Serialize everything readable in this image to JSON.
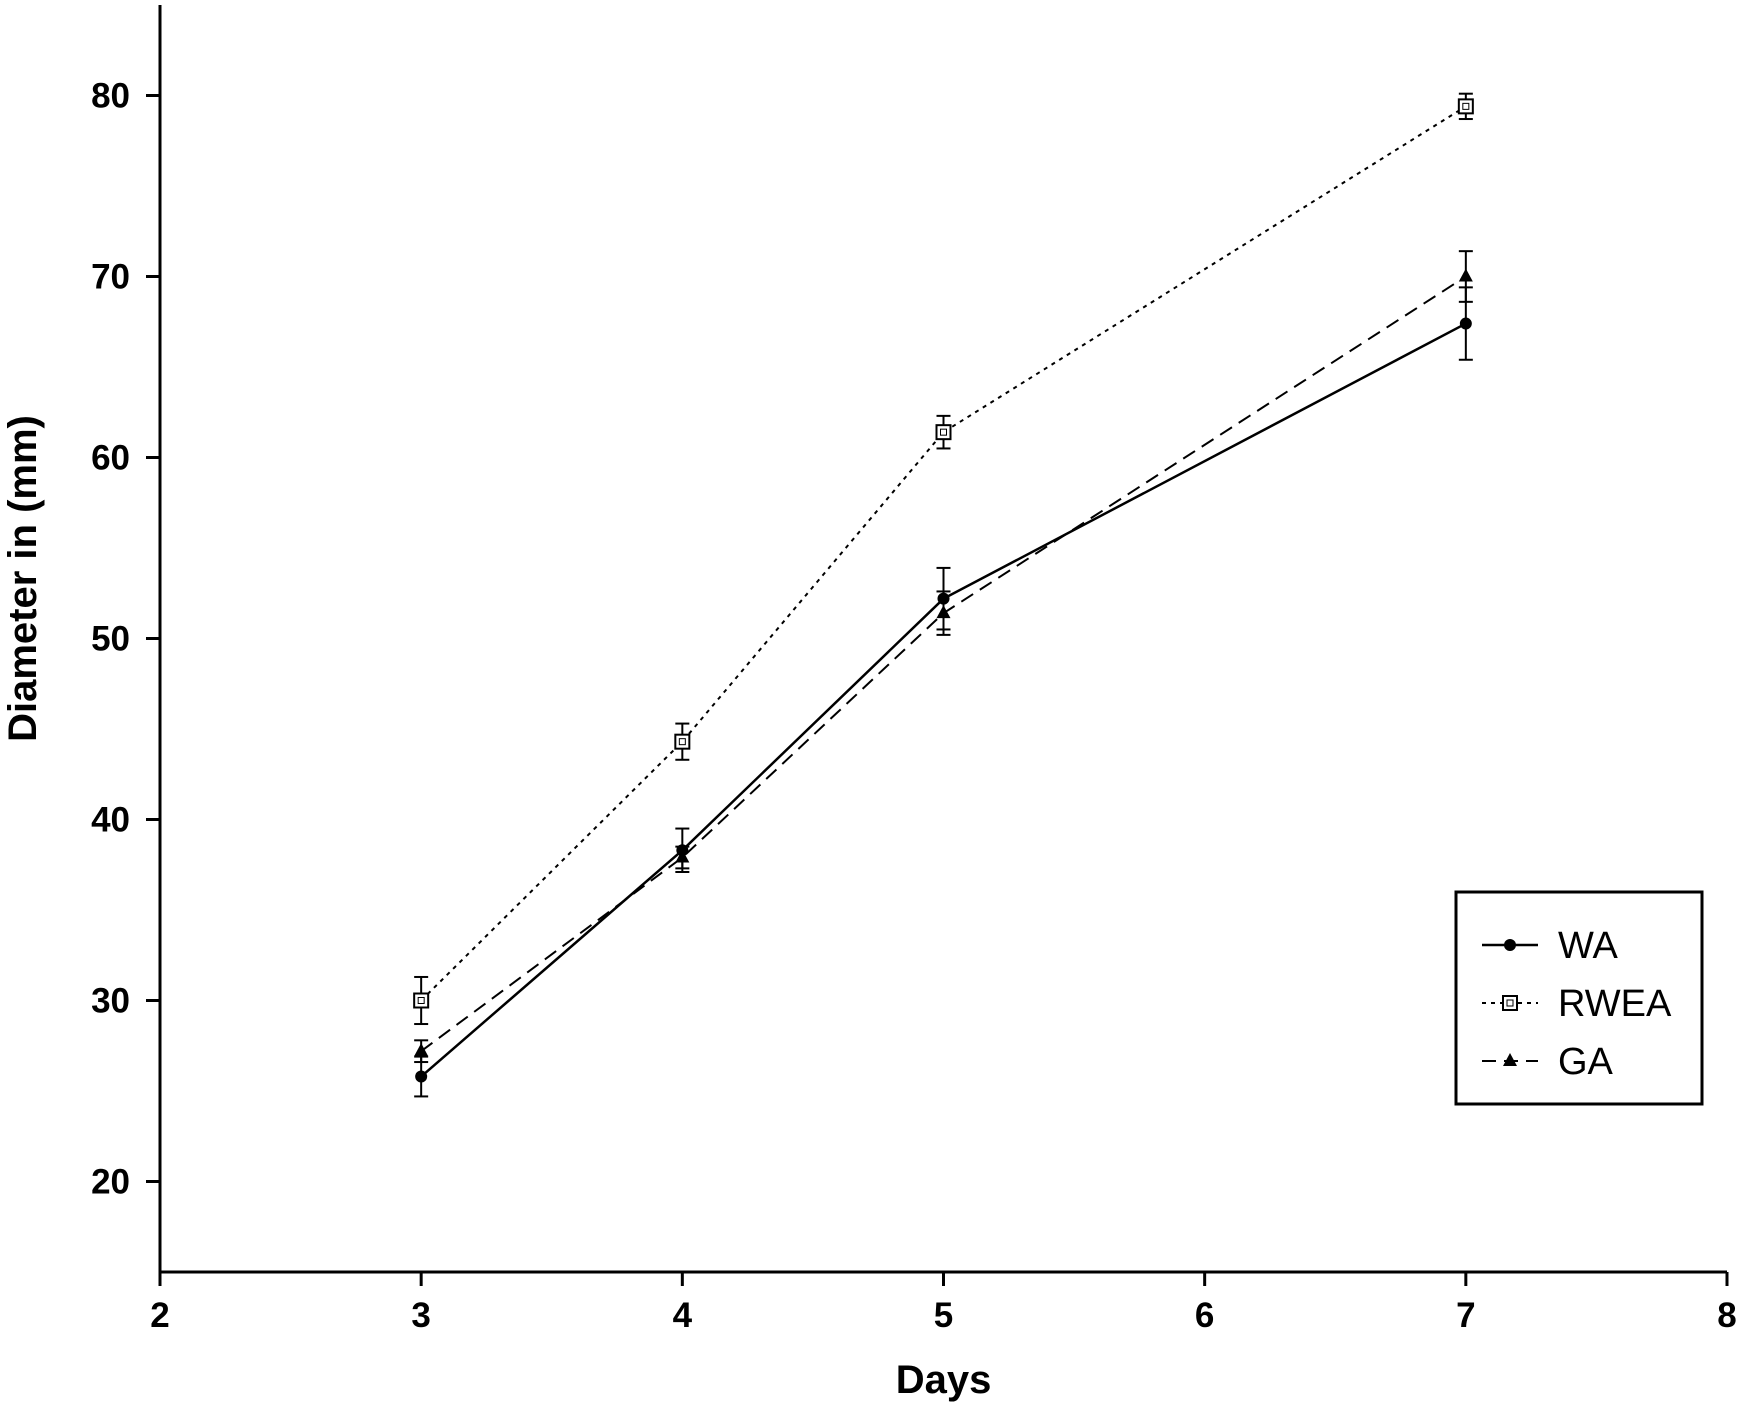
{
  "chart_data": {
    "type": "line",
    "title": "",
    "xlabel": "Days",
    "ylabel": "Diameter in (mm)",
    "xlim": [
      2,
      8
    ],
    "ylim": [
      15,
      85
    ],
    "xticks": [
      2,
      3,
      4,
      5,
      6,
      7,
      8
    ],
    "yticks": [
      20,
      30,
      40,
      50,
      60,
      70,
      80
    ],
    "xtick_labels": [
      "2",
      "3",
      "4",
      "5",
      "6",
      "7",
      "8"
    ],
    "ytick_labels": [
      "20",
      "30",
      "40",
      "50",
      "60",
      "70",
      "80"
    ],
    "grid": false,
    "legend_position": "lower-right",
    "series": [
      {
        "name": "WA",
        "line_style": "solid",
        "marker": "filled-circle",
        "x": [
          3,
          4,
          5,
          7
        ],
        "y": [
          25.8,
          38.3,
          52.2,
          67.4
        ],
        "error": [
          1.1,
          1.2,
          1.7,
          2.0
        ]
      },
      {
        "name": "RWEA",
        "line_style": "dotted",
        "marker": "open-square",
        "x": [
          3,
          4,
          5,
          7
        ],
        "y": [
          30.0,
          44.3,
          61.4,
          79.4
        ],
        "error": [
          1.3,
          1.0,
          0.9,
          0.7
        ]
      },
      {
        "name": "GA",
        "line_style": "dashed",
        "marker": "filled-triangle",
        "x": [
          3,
          4,
          5,
          7
        ],
        "y": [
          27.2,
          37.9,
          51.4,
          70.0
        ],
        "error": [
          0.6,
          0.6,
          1.2,
          1.4
        ]
      }
    ],
    "colors": {
      "axis": "#000000",
      "lines": "#000000",
      "background": "#ffffff"
    }
  }
}
